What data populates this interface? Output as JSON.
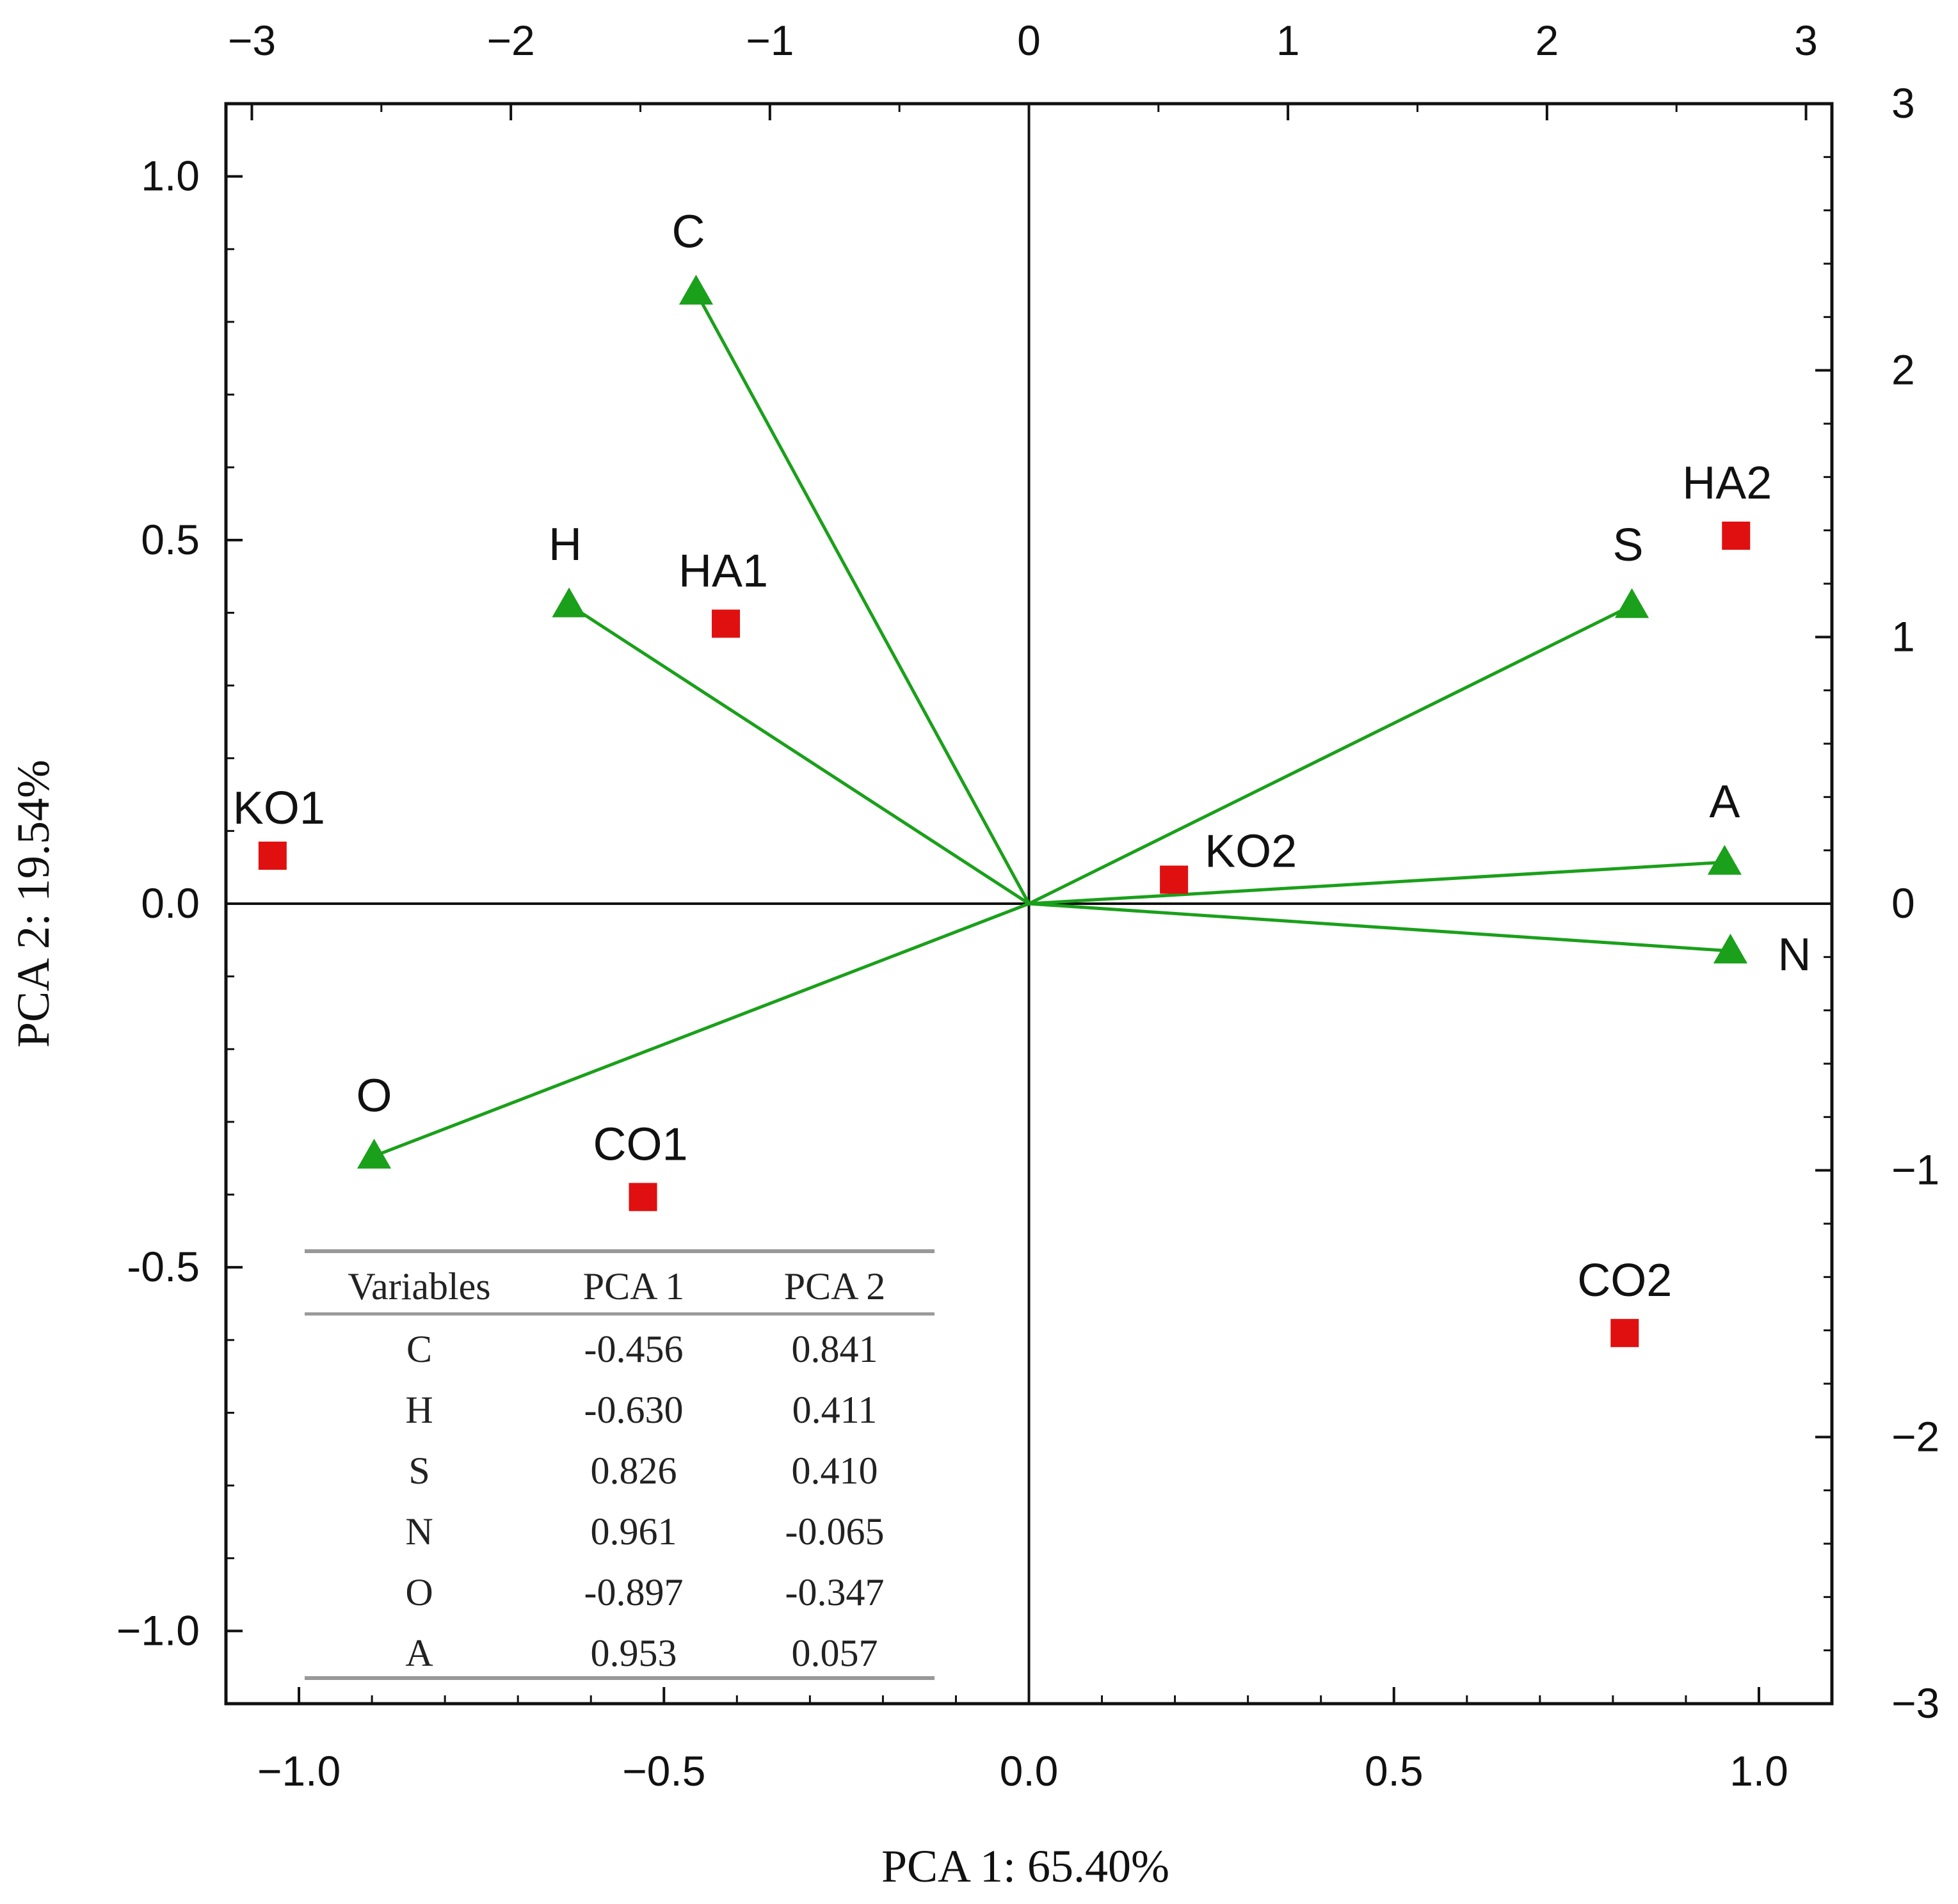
{
  "chart_data": {
    "type": "scatter",
    "title": "",
    "xlabel": "PCA 1: 65.40%",
    "ylabel": "PCA 2: 19.54%",
    "xlim": [
      -1.1,
      1.1
    ],
    "ylim": [
      -1.1,
      1.1
    ],
    "xticks": [
      -1.0,
      -0.5,
      0.0,
      0.5,
      1.0
    ],
    "xtick_labels": [
      "−1.0",
      "−0.5",
      "0.0",
      "0.5",
      "1.0"
    ],
    "yticks": [
      1.0,
      0.5,
      0.0,
      -0.5,
      -1.0
    ],
    "ytick_labels": [
      "1.0",
      "0.5",
      "0.0",
      "-0.5",
      "−1.0"
    ],
    "top_axis": {
      "lim": [
        -3.1,
        3.1
      ],
      "ticks": [
        -3,
        -2,
        -1,
        0,
        1,
        2,
        3
      ],
      "tick_labels": [
        "−3",
        "−2",
        "−1",
        "0",
        "1",
        "2",
        "3"
      ]
    },
    "right_axis": {
      "lim": [
        -3,
        3
      ],
      "ticks": [
        3,
        2,
        1,
        0,
        -1,
        -2,
        -3
      ],
      "tick_labels": [
        "3",
        "2",
        "1",
        "0",
        "−1",
        "−2",
        "−3"
      ]
    },
    "grid": false,
    "loadings": [
      {
        "name": "C",
        "x": -0.456,
        "y": 0.841
      },
      {
        "name": "H",
        "x": -0.63,
        "y": 0.411
      },
      {
        "name": "S",
        "x": 0.826,
        "y": 0.41
      },
      {
        "name": "N",
        "x": 0.961,
        "y": -0.065
      },
      {
        "name": "O",
        "x": -0.897,
        "y": -0.347
      },
      {
        "name": "A",
        "x": 0.953,
        "y": 0.057
      }
    ],
    "scores": [
      {
        "name": "KO1",
        "x": -2.92,
        "y": 0.18
      },
      {
        "name": "HA1",
        "x": -1.17,
        "y": 1.05
      },
      {
        "name": "HA2",
        "x": 2.73,
        "y": 1.38
      },
      {
        "name": "KO2",
        "x": 0.56,
        "y": 0.09
      },
      {
        "name": "CO1",
        "x": -1.49,
        "y": -1.1
      },
      {
        "name": "CO2",
        "x": 2.3,
        "y": -1.61
      }
    ],
    "table": {
      "headers": [
        "Variables",
        "PCA 1",
        "PCA 2"
      ],
      "rows": [
        [
          "C",
          "-0.456",
          "0.841"
        ],
        [
          "H",
          "-0.630",
          "0.411"
        ],
        [
          "S",
          "0.826",
          "0.410"
        ],
        [
          "N",
          "0.961",
          "-0.065"
        ],
        [
          "O",
          "-0.897",
          "-0.347"
        ],
        [
          "A",
          "0.953",
          "0.057"
        ]
      ]
    },
    "colors": {
      "loading": "#1aa01a",
      "score": "#e01010",
      "axis": "#111111",
      "table_rule": "#999999"
    }
  }
}
